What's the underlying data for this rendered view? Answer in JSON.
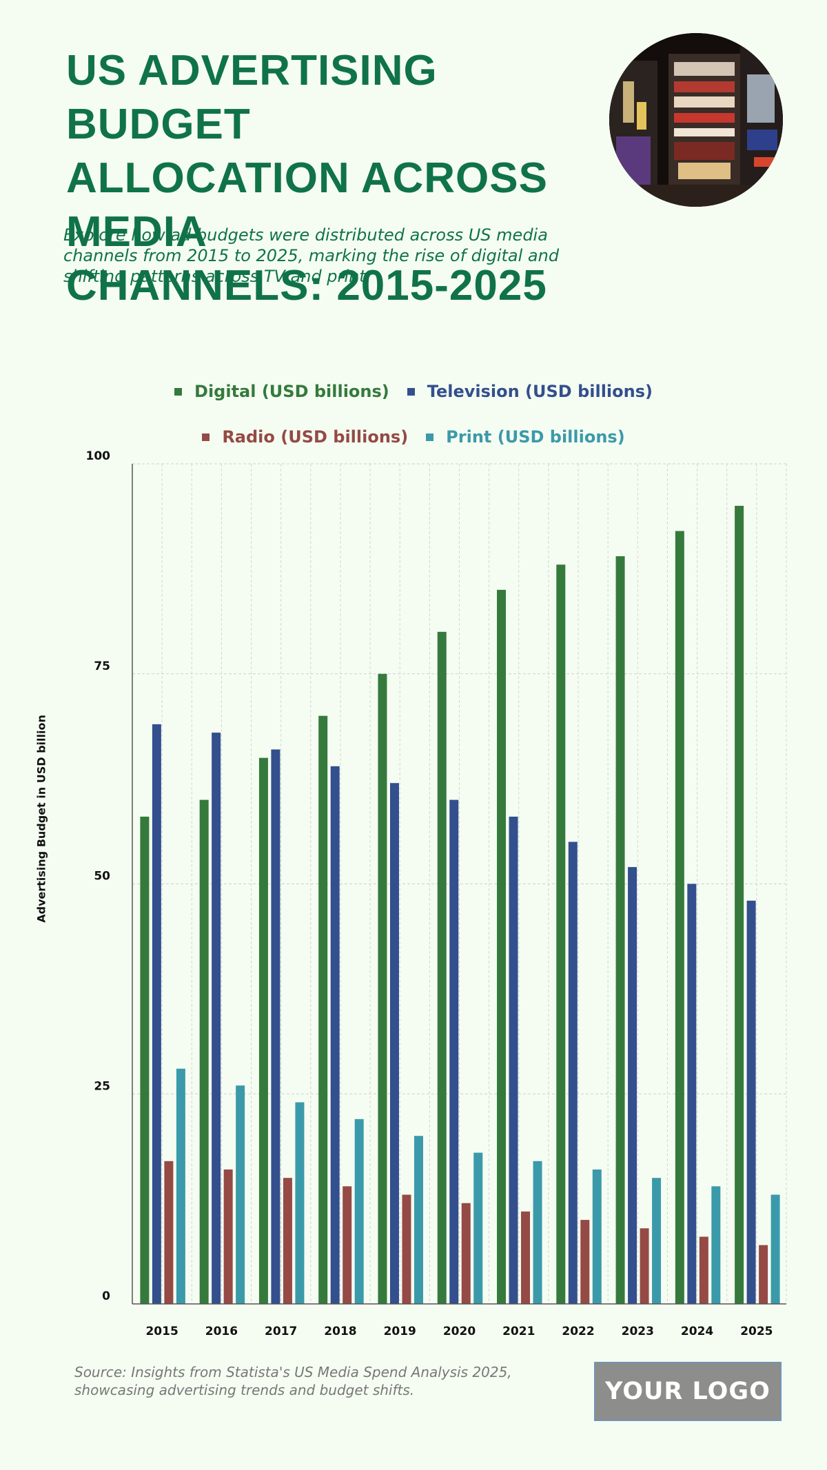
{
  "header": {
    "title_lines": [
      "US ADVERTISING BUDGET",
      "ALLOCATION ACROSS MEDIA",
      "CHANNELS: 2015-2025"
    ],
    "subtitle_lines": [
      "Explore how ad budgets were distributed across US media",
      "channels from 2015 to 2025, marking the rise of digital and",
      "shifting patterns across TV and print."
    ]
  },
  "footer": {
    "source_lines": [
      "Source: Insights from Statista's US Media Spend Analysis 2025,",
      "showcasing advertising trends and budget shifts."
    ],
    "logo_text": "YOUR LOGO"
  },
  "chart_data": {
    "type": "bar",
    "title": "US ADVERTISING BUDGET ALLOCATION ACROSS MEDIA CHANNELS: 2015-2025",
    "ylabel": "Advertising Budget in USD billion",
    "xlabel": "",
    "categories": [
      "2015",
      "2016",
      "2017",
      "2018",
      "2019",
      "2020",
      "2021",
      "2022",
      "2023",
      "2024",
      "2025"
    ],
    "series": [
      {
        "name": "Digital (USD billions)",
        "color": "#357a3c",
        "values": [
          58,
          60,
          65,
          70,
          75,
          80,
          85,
          88,
          89,
          92,
          95
        ]
      },
      {
        "name": "Television (USD billions)",
        "color": "#334f8d",
        "values": [
          69,
          68,
          66,
          64,
          62,
          60,
          58,
          55,
          52,
          50,
          48
        ]
      },
      {
        "name": "Radio (USD billions)",
        "color": "#954a45",
        "values": [
          17,
          16,
          15,
          14,
          13,
          12,
          11,
          10,
          9,
          8,
          7
        ]
      },
      {
        "name": "Print (USD billions)",
        "color": "#3b9aaa",
        "values": [
          28,
          26,
          24,
          22,
          20,
          18,
          17,
          16,
          15,
          14,
          13
        ]
      }
    ],
    "ylim": [
      0,
      100
    ],
    "yticks": [
      0,
      25,
      50,
      75,
      100
    ],
    "grid": true,
    "legend_position": "top"
  }
}
